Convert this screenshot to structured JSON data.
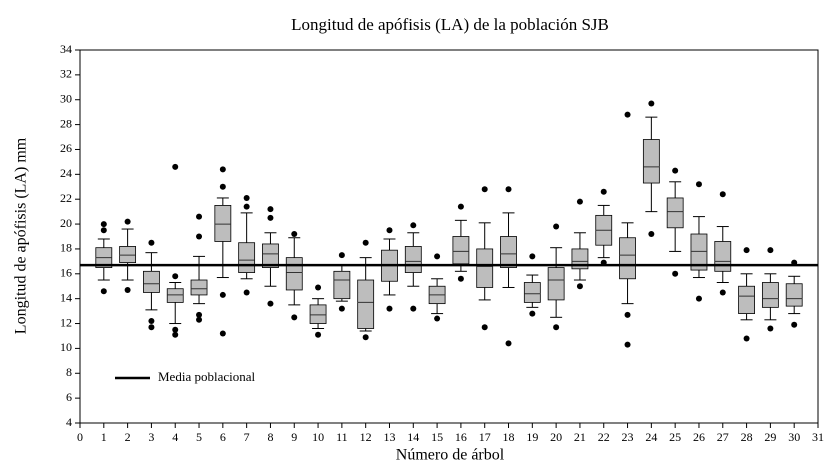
{
  "chart_data": {
    "type": "box",
    "title": "Longitud de apófisis (LA) de la población SJB",
    "x_label": "Número de árbol",
    "y_label": "Longitud de apófisis (LA) mm",
    "color": "#bdbdbd",
    "xlim": [
      0,
      31
    ],
    "xticks": [
      0,
      1,
      2,
      3,
      4,
      5,
      6,
      7,
      8,
      9,
      10,
      11,
      12,
      13,
      14,
      15,
      16,
      17,
      18,
      19,
      20,
      21,
      22,
      23,
      24,
      25,
      26,
      27,
      28,
      29,
      30,
      31
    ],
    "ylim": [
      4,
      34
    ],
    "yticks": [
      4,
      6,
      8,
      10,
      12,
      14,
      16,
      18,
      20,
      22,
      24,
      26,
      28,
      30,
      32,
      34
    ],
    "mean_line": {
      "name": "Media poblacional",
      "value": 16.7
    },
    "boxes": [
      {
        "x": 1,
        "low": 15.5,
        "q1": 16.5,
        "median": 17.3,
        "q3": 18.1,
        "high": 18.8,
        "outliers": [
          14.6,
          19.5,
          20
        ]
      },
      {
        "x": 2,
        "low": 15.5,
        "q1": 16.9,
        "median": 17.5,
        "q3": 18.2,
        "high": 19.6,
        "outliers": [
          14.7,
          20.2
        ]
      },
      {
        "x": 3,
        "low": 13.1,
        "q1": 14.5,
        "median": 15.2,
        "q3": 16.2,
        "high": 17.7,
        "outliers": [
          11.7,
          12.2,
          18.5
        ]
      },
      {
        "x": 4,
        "low": 12.0,
        "q1": 13.7,
        "median": 14.3,
        "q3": 14.8,
        "high": 15.3,
        "outliers": [
          11.1,
          11.5,
          15.8,
          24.6
        ]
      },
      {
        "x": 5,
        "low": 13.6,
        "q1": 14.3,
        "median": 14.8,
        "q3": 15.5,
        "high": 17.4,
        "outliers": [
          12.3,
          12.7,
          19.0,
          20.6
        ]
      },
      {
        "x": 6,
        "low": 15.7,
        "q1": 18.6,
        "median": 20.0,
        "q3": 21.5,
        "high": 22.1,
        "outliers": [
          11.2,
          14.3,
          23.0,
          24.4
        ]
      },
      {
        "x": 7,
        "low": 15.6,
        "q1": 16.1,
        "median": 17.1,
        "q3": 18.5,
        "high": 20.9,
        "outliers": [
          14.5,
          21.4,
          22.1
        ]
      },
      {
        "x": 8,
        "low": 15.0,
        "q1": 16.5,
        "median": 17.6,
        "q3": 18.4,
        "high": 19.3,
        "outliers": [
          13.6,
          20.5,
          21.2
        ]
      },
      {
        "x": 9,
        "low": 13.5,
        "q1": 14.7,
        "median": 16.1,
        "q3": 17.3,
        "high": 18.9,
        "outliers": [
          12.5,
          19.2
        ]
      },
      {
        "x": 10,
        "low": 11.6,
        "q1": 12.0,
        "median": 12.7,
        "q3": 13.5,
        "high": 14.0,
        "outliers": [
          11.1,
          14.9
        ]
      },
      {
        "x": 11,
        "low": 13.8,
        "q1": 14.0,
        "median": 15.5,
        "q3": 16.2,
        "high": 16.7,
        "outliers": [
          13.2,
          17.5
        ]
      },
      {
        "x": 12,
        "low": 11.4,
        "q1": 11.6,
        "median": 13.7,
        "q3": 15.5,
        "high": 17.3,
        "outliers": [
          10.9,
          18.5
        ]
      },
      {
        "x": 13,
        "low": 14.3,
        "q1": 15.4,
        "median": 16.7,
        "q3": 17.9,
        "high": 18.8,
        "outliers": [
          13.2,
          19.5
        ]
      },
      {
        "x": 14,
        "low": 15.0,
        "q1": 16.1,
        "median": 17.0,
        "q3": 18.2,
        "high": 19.3,
        "outliers": [
          13.2,
          19.9
        ]
      },
      {
        "x": 15,
        "low": 12.8,
        "q1": 13.6,
        "median": 14.3,
        "q3": 15.0,
        "high": 15.6,
        "outliers": [
          12.4,
          17.4
        ]
      },
      {
        "x": 16,
        "low": 16.2,
        "q1": 16.8,
        "median": 17.8,
        "q3": 19.0,
        "high": 20.3,
        "outliers": [
          15.6,
          21.4
        ]
      },
      {
        "x": 17,
        "low": 13.9,
        "q1": 14.9,
        "median": 16.6,
        "q3": 18.0,
        "high": 20.1,
        "outliers": [
          11.7,
          22.8
        ]
      },
      {
        "x": 18,
        "low": 14.9,
        "q1": 16.5,
        "median": 17.6,
        "q3": 19.0,
        "high": 20.9,
        "outliers": [
          10.4,
          22.8
        ]
      },
      {
        "x": 19,
        "low": 13.3,
        "q1": 13.7,
        "median": 14.4,
        "q3": 15.3,
        "high": 15.9,
        "outliers": [
          12.8,
          17.4
        ]
      },
      {
        "x": 20,
        "low": 12.5,
        "q1": 13.9,
        "median": 15.5,
        "q3": 16.5,
        "high": 18.1,
        "outliers": [
          11.7,
          19.8
        ]
      },
      {
        "x": 21,
        "low": 15.5,
        "q1": 16.4,
        "median": 17.0,
        "q3": 18.0,
        "high": 19.3,
        "outliers": [
          15.0,
          21.8
        ]
      },
      {
        "x": 22,
        "low": 17.3,
        "q1": 18.3,
        "median": 19.5,
        "q3": 20.7,
        "high": 21.5,
        "outliers": [
          16.9,
          22.6
        ]
      },
      {
        "x": 23,
        "low": 13.6,
        "q1": 15.6,
        "median": 17.5,
        "q3": 18.9,
        "high": 20.1,
        "outliers": [
          10.3,
          12.7,
          28.8
        ]
      },
      {
        "x": 24,
        "low": 21.0,
        "q1": 23.3,
        "median": 24.6,
        "q3": 26.8,
        "high": 28.6,
        "outliers": [
          19.2,
          29.7
        ]
      },
      {
        "x": 25,
        "low": 17.8,
        "q1": 19.7,
        "median": 21.0,
        "q3": 22.1,
        "high": 23.4,
        "outliers": [
          16.0,
          24.3
        ]
      },
      {
        "x": 26,
        "low": 15.7,
        "q1": 16.3,
        "median": 17.8,
        "q3": 19.2,
        "high": 20.6,
        "outliers": [
          14.0,
          23.2
        ]
      },
      {
        "x": 27,
        "low": 15.3,
        "q1": 16.2,
        "median": 17.0,
        "q3": 18.6,
        "high": 19.8,
        "outliers": [
          14.5,
          22.4
        ]
      },
      {
        "x": 28,
        "low": 12.3,
        "q1": 12.8,
        "median": 14.2,
        "q3": 15.0,
        "high": 16.0,
        "outliers": [
          10.8,
          17.9
        ]
      },
      {
        "x": 29,
        "low": 12.3,
        "q1": 13.3,
        "median": 14.0,
        "q3": 15.3,
        "high": 16.0,
        "outliers": [
          11.6,
          17.9
        ]
      },
      {
        "x": 30,
        "low": 12.8,
        "q1": 13.4,
        "median": 14.0,
        "q3": 15.2,
        "high": 15.8,
        "outliers": [
          11.9,
          16.9
        ]
      }
    ]
  }
}
